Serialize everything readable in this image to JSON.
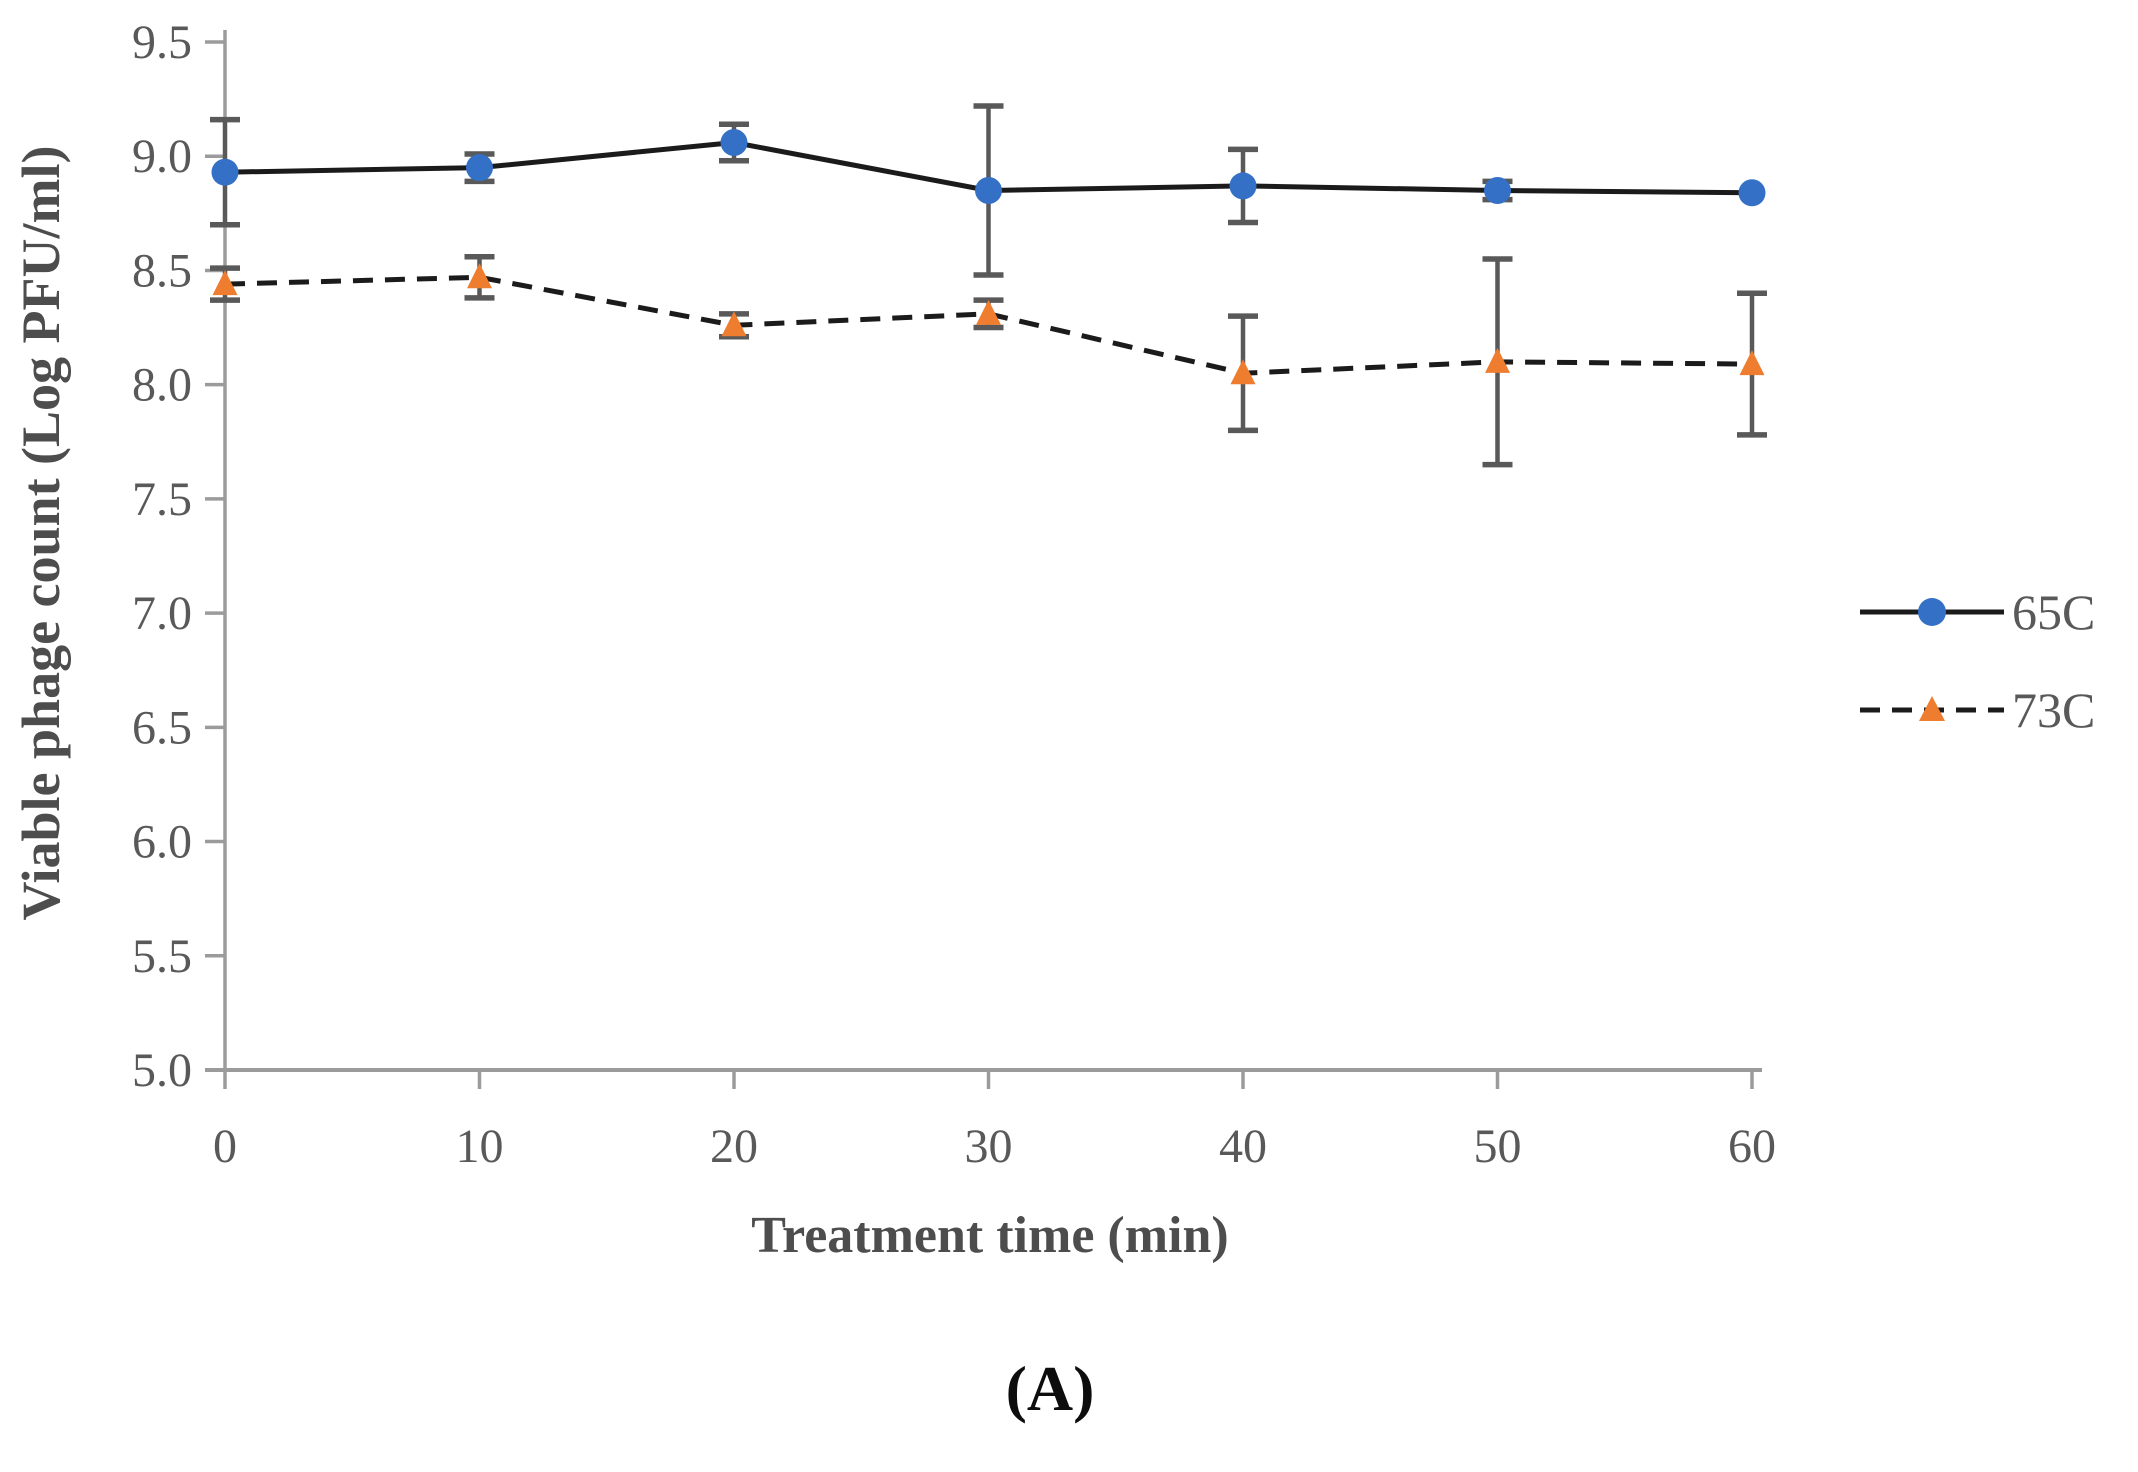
{
  "figure": {
    "caption": "(A)"
  },
  "chart_data": {
    "type": "line",
    "title": "",
    "xlabel": "Treatment time (min)",
    "ylabel": "Viable phage count (Log PFU/ml)",
    "x": [
      0,
      10,
      20,
      30,
      40,
      50,
      60
    ],
    "xticks": [
      "0",
      "10",
      "20",
      "30",
      "40",
      "50",
      "60"
    ],
    "yticks": [
      "5.0",
      "5.5",
      "6.0",
      "6.5",
      "7.0",
      "7.5",
      "8.0",
      "8.5",
      "9.0",
      "9.5"
    ],
    "xlim": [
      0,
      60
    ],
    "ylim": [
      5.0,
      9.5
    ],
    "grid": false,
    "legend_position": "right",
    "series": [
      {
        "name": "65C",
        "marker": "circle",
        "marker_color": "#3470c6",
        "line_style": "solid",
        "line_color": "#1b1b1b",
        "values": [
          8.93,
          8.95,
          9.06,
          8.85,
          8.87,
          8.85,
          8.84
        ],
        "errors": [
          0.23,
          0.06,
          0.08,
          0.37,
          0.16,
          0.04,
          0
        ]
      },
      {
        "name": "73C",
        "marker": "triangle",
        "marker_color": "#ee7d2f",
        "line_style": "dashed",
        "line_color": "#1b1b1b",
        "values": [
          8.44,
          8.47,
          8.26,
          8.31,
          8.05,
          8.1,
          8.09
        ],
        "errors": [
          0.07,
          0.09,
          0.05,
          0.06,
          0.25,
          0.45,
          0.31
        ]
      }
    ],
    "axis_color": "#9b9b9b",
    "tick_label_color": "#595959",
    "error_bar_color": "#595959"
  }
}
